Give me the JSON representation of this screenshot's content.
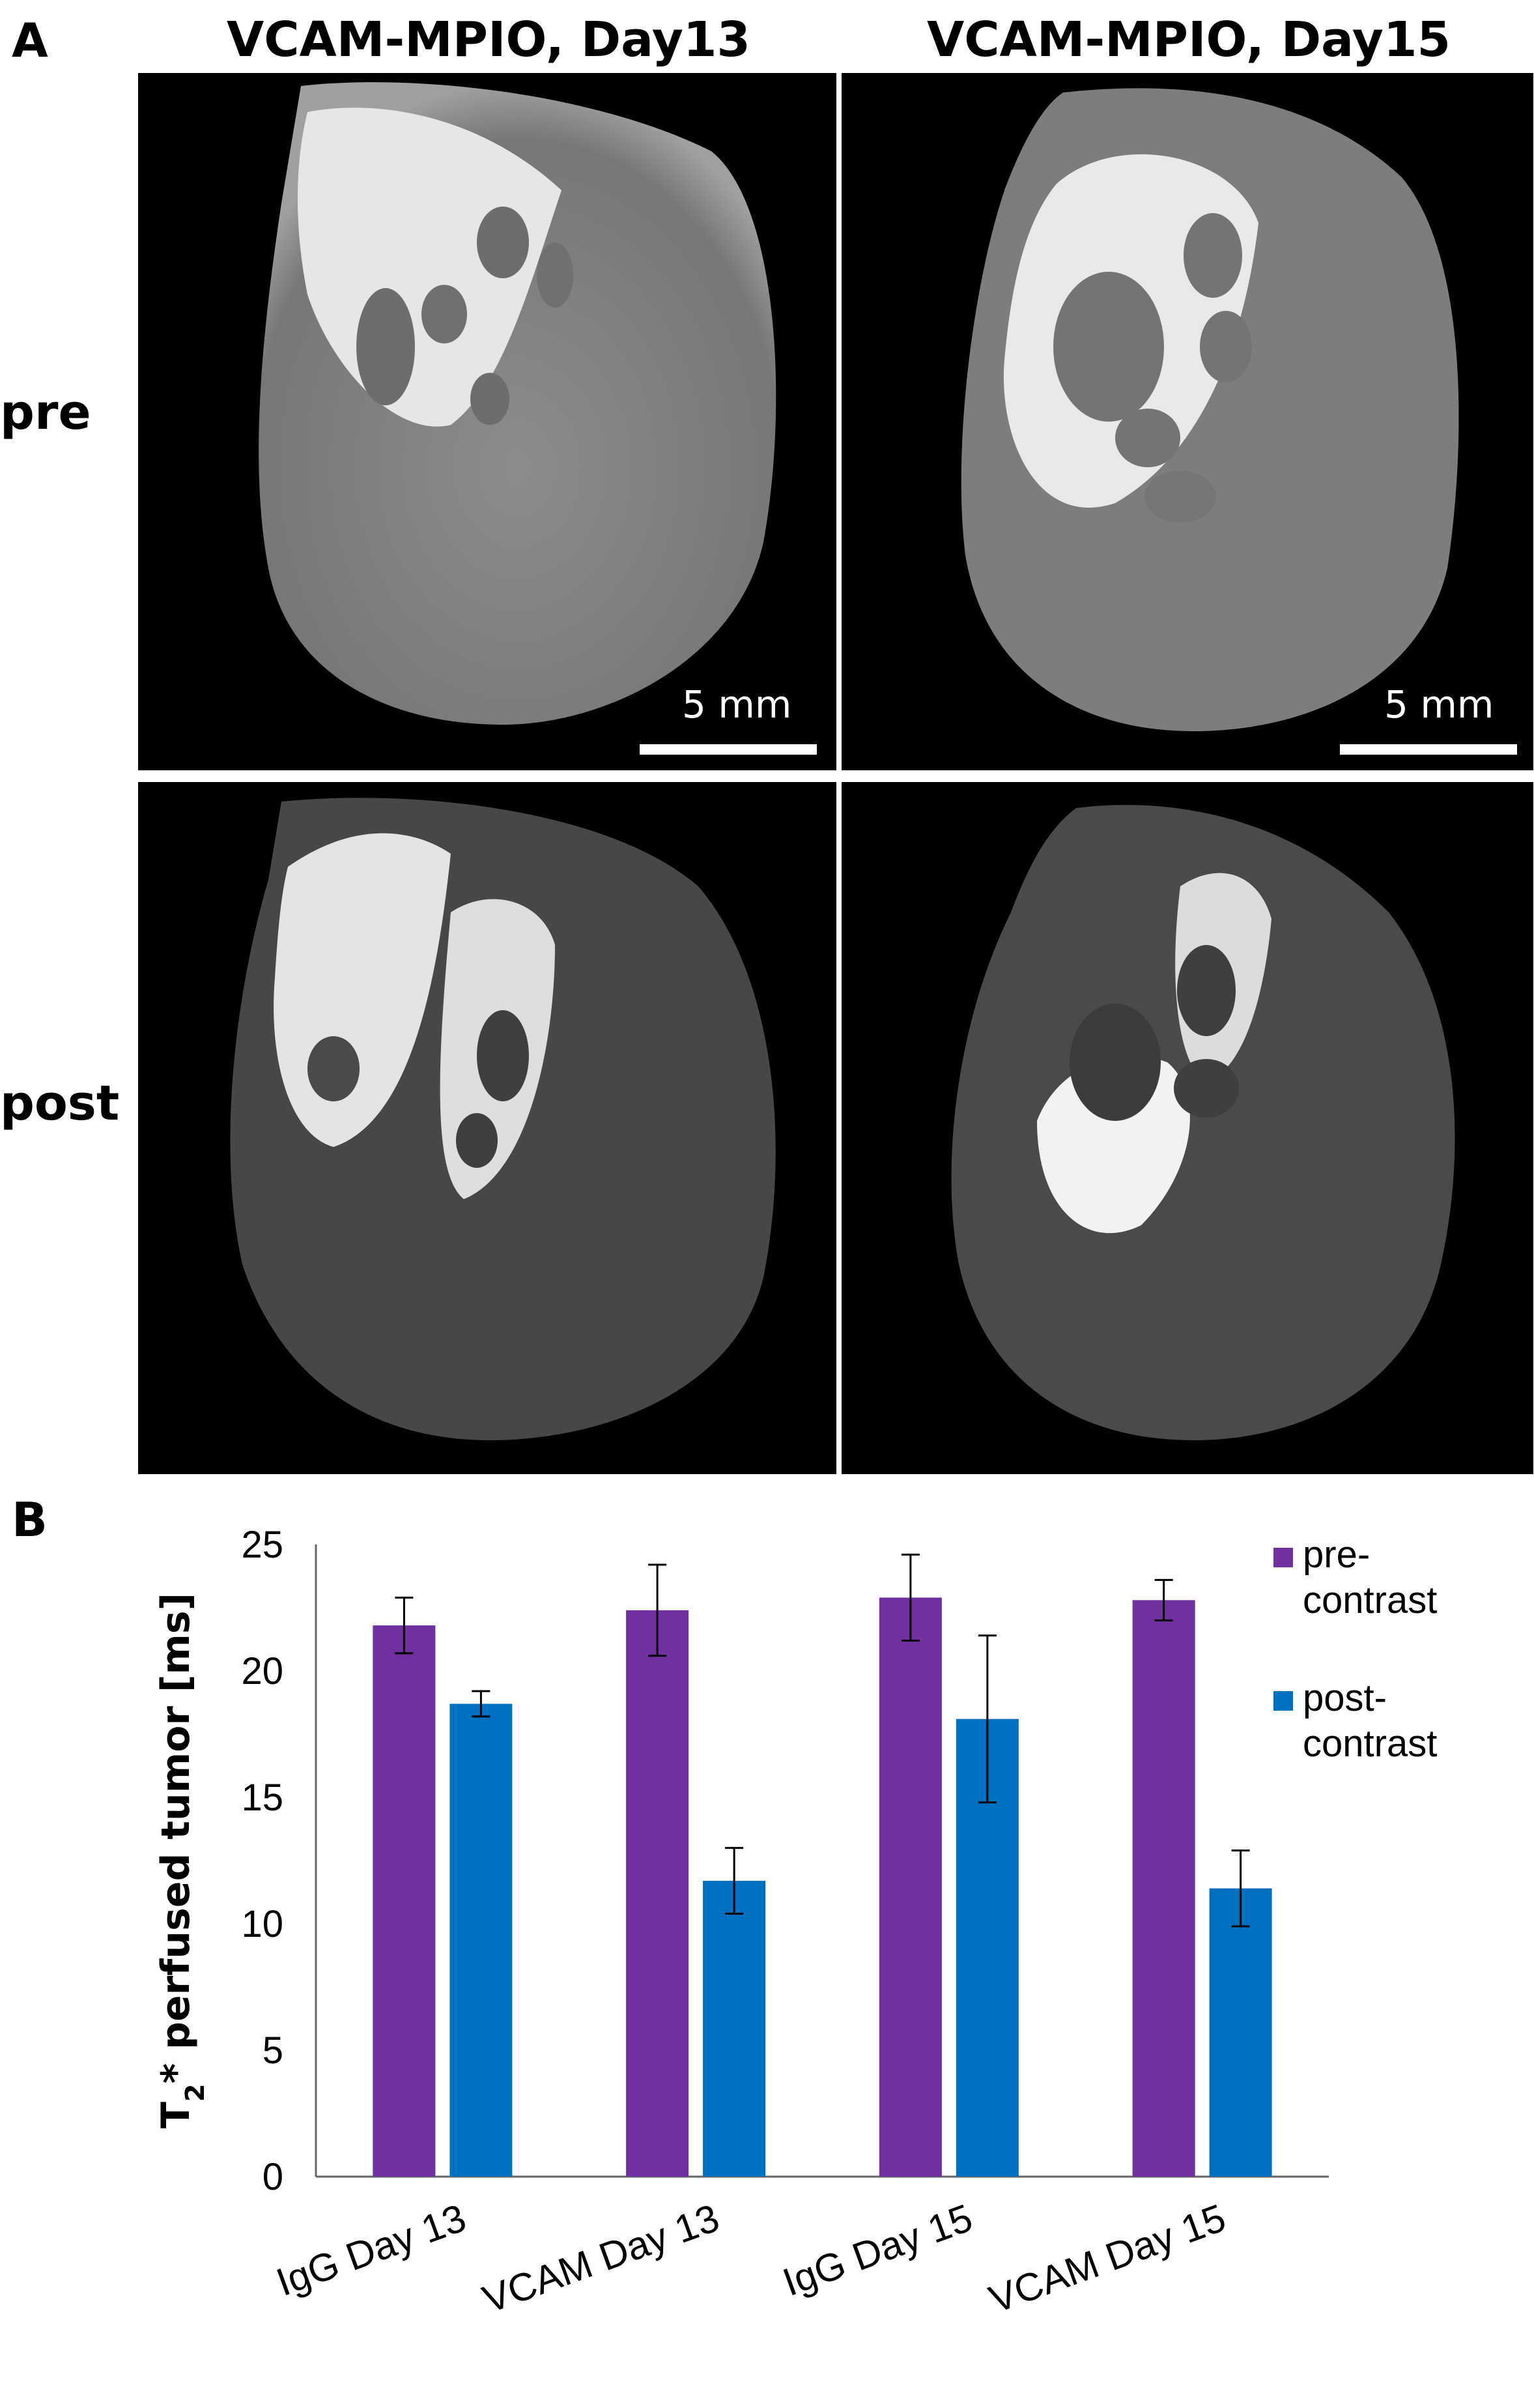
{
  "panel_a": {
    "letter": "A",
    "col_titles": [
      "VCAM-MPIO, Day13",
      "VCAM-MPIO, Day15"
    ],
    "row_labels": [
      "pre",
      "post"
    ],
    "scale_bar_label": "5 mm"
  },
  "panel_b": {
    "letter": "B"
  },
  "chart_data": {
    "type": "bar",
    "categories": [
      "IgG Day 13",
      "VCAM Day 13",
      "IgG Day 15",
      "VCAM Day 15"
    ],
    "series": [
      {
        "name": "pre-contrast",
        "legend_lines": [
          "pre-",
          "contrast"
        ],
        "color": "#7030a0",
        "values": [
          21.8,
          22.4,
          22.9,
          22.8
        ],
        "errors": [
          1.1,
          1.8,
          1.7,
          0.8
        ]
      },
      {
        "name": "post-contrast",
        "legend_lines": [
          "post-",
          "contrast"
        ],
        "color": "#0070c0",
        "values": [
          18.7,
          11.7,
          18.1,
          11.4
        ],
        "errors": [
          0.5,
          1.3,
          3.3,
          1.5
        ]
      }
    ],
    "ylabel_main": "T",
    "ylabel_sub": "2",
    "ylabel_rest": "*  perfused tumor [ms]",
    "ylim": [
      0,
      25
    ],
    "yticks": [
      "0",
      "5",
      "10",
      "15",
      "20",
      "25"
    ],
    "grid": false,
    "legend_position": "top-right"
  }
}
